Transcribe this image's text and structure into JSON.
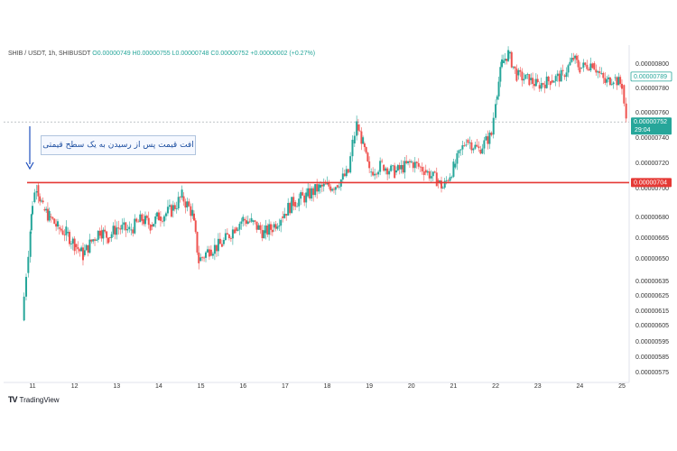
{
  "header": {
    "symbol": "SHIB / USDT, 1h, SHIBUSDT",
    "ohlc": "O0.00000749  H0.00000755  L0.00000748  C0.00000752  +0.00000002 (+0.27%)"
  },
  "annotation": {
    "text": "افت قیمت پس از رسیدن به یک سطح قیمتی"
  },
  "footer": {
    "brand": "TradingView",
    "logo": "TV"
  },
  "colors": {
    "up": "#26a69a",
    "down": "#ef5350",
    "level": "#e53935",
    "arrow": "#1e4fbd",
    "current": "#26a69a"
  },
  "chart_data": {
    "type": "line",
    "title": "",
    "xlabel": "",
    "ylabel": "",
    "x_ticks": [
      "11",
      "12",
      "13",
      "14",
      "15",
      "16",
      "17",
      "18",
      "19",
      "20",
      "21",
      "22",
      "23",
      "24",
      "25"
    ],
    "y_ticks": [
      "0.00000800",
      "0.00000780",
      "0.00000760",
      "0.00000740",
      "0.00000720",
      "0.00000700",
      "0.00000680",
      "0.00000665",
      "0.00000650",
      "0.00000635",
      "0.00000625",
      "0.00000615",
      "0.00000605",
      "0.00000595",
      "0.00000585",
      "0.00000575"
    ],
    "y_tick_values": [
      8e-06,
      7.8e-06,
      7.6e-06,
      7.4e-06,
      7.2e-06,
      7e-06,
      6.8e-06,
      6.65e-06,
      6.5e-06,
      6.35e-06,
      6.25e-06,
      6.15e-06,
      6.05e-06,
      5.95e-06,
      5.85e-06,
      5.75e-06
    ],
    "series": [
      {
        "values": [
          [
            10.75,
            6.08e-06
          ],
          [
            10.85,
            6.4e-06
          ],
          [
            10.95,
            6.7e-06
          ],
          [
            11.0,
            6.9e-06
          ],
          [
            11.1,
            7.02e-06
          ],
          [
            11.25,
            6.85e-06
          ],
          [
            11.4,
            6.8e-06
          ],
          [
            11.6,
            6.72e-06
          ],
          [
            11.8,
            6.68e-06
          ],
          [
            12.0,
            6.6e-06
          ],
          [
            12.2,
            6.52e-06
          ],
          [
            12.4,
            6.62e-06
          ],
          [
            12.6,
            6.7e-06
          ],
          [
            12.8,
            6.65e-06
          ],
          [
            13.0,
            6.72e-06
          ],
          [
            13.3,
            6.7e-06
          ],
          [
            13.6,
            6.78e-06
          ],
          [
            13.8,
            6.74e-06
          ],
          [
            14.0,
            6.8e-06
          ],
          [
            14.3,
            6.84e-06
          ],
          [
            14.55,
            6.94e-06
          ],
          [
            14.8,
            6.82e-06
          ],
          [
            14.95,
            6.48e-06
          ],
          [
            15.2,
            6.56e-06
          ],
          [
            15.5,
            6.6e-06
          ],
          [
            15.8,
            6.72e-06
          ],
          [
            16.0,
            6.78e-06
          ],
          [
            16.2,
            6.76e-06
          ],
          [
            16.5,
            6.68e-06
          ],
          [
            16.7,
            6.72e-06
          ],
          [
            16.9,
            6.8e-06
          ],
          [
            17.2,
            6.9e-06
          ],
          [
            17.5,
            6.94e-06
          ],
          [
            17.8,
            7e-06
          ],
          [
            18.2,
            7.02e-06
          ],
          [
            18.5,
            7.12e-06
          ],
          [
            18.6,
            7.35e-06
          ],
          [
            18.7,
            7.5e-06
          ],
          [
            18.85,
            7.35e-06
          ],
          [
            19.0,
            7.12e-06
          ],
          [
            19.3,
            7.18e-06
          ],
          [
            19.6,
            7.12e-06
          ],
          [
            20.0,
            7.2e-06
          ],
          [
            20.3,
            7.14e-06
          ],
          [
            20.6,
            7.06e-06
          ],
          [
            20.75,
            7e-06
          ],
          [
            21.0,
            7.16e-06
          ],
          [
            21.3,
            7.38e-06
          ],
          [
            21.6,
            7.3e-06
          ],
          [
            21.9,
            7.42e-06
          ],
          [
            22.0,
            7.7e-06
          ],
          [
            22.15,
            8e-06
          ],
          [
            22.3,
            8.08e-06
          ],
          [
            22.5,
            7.9e-06
          ],
          [
            22.8,
            7.86e-06
          ],
          [
            23.0,
            7.82e-06
          ],
          [
            23.3,
            7.86e-06
          ],
          [
            23.6,
            7.9e-06
          ],
          [
            23.85,
            8.04e-06
          ],
          [
            24.0,
            7.96e-06
          ],
          [
            24.3,
            8e-06
          ],
          [
            24.6,
            7.84e-06
          ],
          [
            24.8,
            7.88e-06
          ],
          [
            25.0,
            7.82e-06
          ],
          [
            25.1,
            7.52e-06
          ]
        ]
      }
    ],
    "level_label": "0.00000704",
    "level_value": 7.04e-06,
    "current_label": "0.00000752",
    "current_value": 7.52e-06,
    "countdown": "29:04",
    "high_label": "0.00000789",
    "high_value": 7.89e-06,
    "grid": false,
    "legend": "none"
  }
}
